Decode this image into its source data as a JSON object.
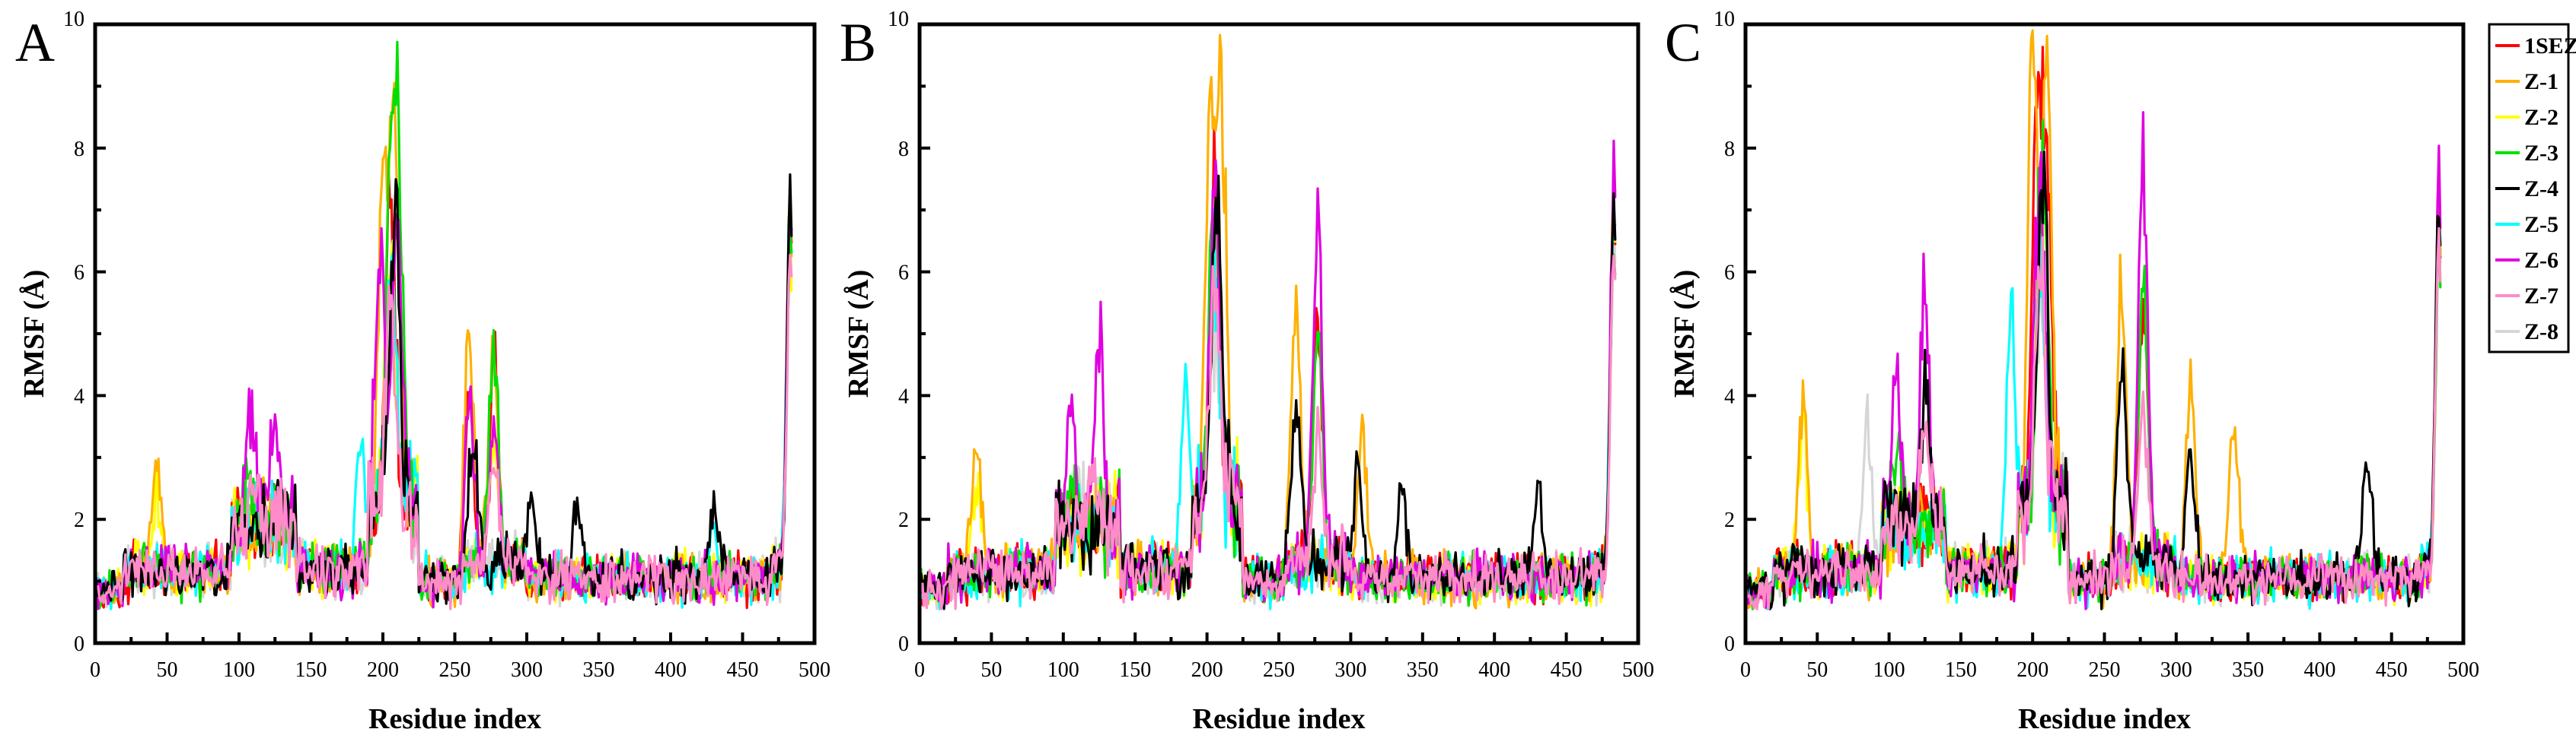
{
  "chart_data": [
    {
      "type": "line",
      "panel_label": "A",
      "xlabel": "Residue index",
      "ylabel": "RMSF (Å)",
      "xlim": [
        0,
        500
      ],
      "ylim": [
        0,
        10
      ],
      "xticks": [
        0,
        50,
        100,
        150,
        200,
        250,
        300,
        350,
        400,
        450,
        500
      ],
      "yticks": [
        0,
        2,
        4,
        6,
        8,
        10
      ],
      "x_max_residue": 484,
      "peaks": {
        "1SEZ": [
          [
            205,
            6.9
          ],
          [
            260,
            4.2
          ],
          [
            277,
            5.0
          ],
          [
            483,
            7.6
          ]
        ],
        "Z-1": [
          [
            43,
            3.1
          ],
          [
            200,
            7.6
          ],
          [
            208,
            8.7
          ],
          [
            260,
            5.4
          ],
          [
            277,
            5.1
          ],
          [
            483,
            7.5
          ]
        ],
        "Z-2": [
          [
            43,
            2.4
          ],
          [
            205,
            6.0
          ],
          [
            277,
            3.4
          ],
          [
            483,
            7.2
          ]
        ],
        "Z-3": [
          [
            105,
            2.8
          ],
          [
            205,
            7.0
          ],
          [
            211,
            7.7
          ],
          [
            277,
            5.0
          ],
          [
            483,
            7.0
          ]
        ],
        "Z-4": [
          [
            130,
            2.7
          ],
          [
            208,
            6.9
          ],
          [
            263,
            3.4
          ],
          [
            303,
            2.6
          ],
          [
            335,
            2.3
          ],
          [
            430,
            2.4
          ],
          [
            483,
            7.6
          ]
        ],
        "Z-5": [
          [
            185,
            3.4
          ],
          [
            205,
            5.8
          ],
          [
            430,
            2.0
          ],
          [
            483,
            7.7
          ]
        ],
        "Z-6": [
          [
            108,
            3.9
          ],
          [
            125,
            3.9
          ],
          [
            198,
            6.6
          ],
          [
            210,
            6.8
          ],
          [
            260,
            4.1
          ],
          [
            277,
            3.6
          ],
          [
            483,
            7.6
          ]
        ],
        "Z-7": [
          [
            110,
            2.6
          ],
          [
            205,
            5.0
          ],
          [
            277,
            3.0
          ],
          [
            483,
            6.8
          ]
        ],
        "Z-8": [
          [
            110,
            2.3
          ],
          [
            205,
            4.6
          ],
          [
            483,
            6.7
          ]
        ]
      }
    },
    {
      "type": "line",
      "panel_label": "B",
      "xlabel": "Residue index",
      "ylabel": "RMSF (Å)",
      "xlim": [
        0,
        500
      ],
      "ylim": [
        0,
        10
      ],
      "xticks": [
        0,
        50,
        100,
        150,
        200,
        250,
        300,
        350,
        400,
        450,
        500
      ],
      "yticks": [
        0,
        2,
        4,
        6,
        8,
        10
      ],
      "x_max_residue": 484,
      "peaks": {
        "1SEZ": [
          [
            205,
            7.3
          ],
          [
            277,
            5.4
          ],
          [
            483,
            7.6
          ]
        ],
        "Z-1": [
          [
            40,
            3.4
          ],
          [
            202,
            8.4
          ],
          [
            210,
            8.9
          ],
          [
            262,
            5.7
          ],
          [
            308,
            3.7
          ],
          [
            483,
            7.9
          ]
        ],
        "Z-2": [
          [
            40,
            2.6
          ],
          [
            205,
            6.0
          ],
          [
            483,
            7.4
          ]
        ],
        "Z-3": [
          [
            107,
            2.8
          ],
          [
            205,
            7.2
          ],
          [
            277,
            5.2
          ],
          [
            483,
            7.0
          ]
        ],
        "Z-4": [
          [
            207,
            7.0
          ],
          [
            262,
            4.3
          ],
          [
            305,
            2.8
          ],
          [
            335,
            2.6
          ],
          [
            430,
            2.6
          ],
          [
            483,
            7.7
          ]
        ],
        "Z-5": [
          [
            185,
            4.5
          ],
          [
            205,
            6.0
          ],
          [
            483,
            7.6
          ]
        ],
        "Z-6": [
          [
            105,
            4.2
          ],
          [
            125,
            5.0
          ],
          [
            205,
            7.4
          ],
          [
            277,
            7.0
          ],
          [
            483,
            8.2
          ]
        ],
        "Z-7": [
          [
            120,
            3.0
          ],
          [
            205,
            5.5
          ],
          [
            277,
            3.5
          ],
          [
            483,
            7.0
          ]
        ],
        "Z-8": [
          [
            110,
            2.5
          ],
          [
            205,
            5.0
          ],
          [
            483,
            6.8
          ]
        ]
      }
    },
    {
      "type": "line",
      "panel_label": "C",
      "xlabel": "Residue index",
      "ylabel": "RMSF (Å)",
      "xlim": [
        0,
        500
      ],
      "ylim": [
        0,
        10
      ],
      "xticks": [
        0,
        50,
        100,
        150,
        200,
        250,
        300,
        350,
        400,
        450,
        500
      ],
      "yticks": [
        0,
        2,
        4,
        6,
        8,
        10
      ],
      "x_max_residue": 484,
      "peaks": {
        "1SEZ": [
          [
            203,
            8.2
          ],
          [
            210,
            7.5
          ],
          [
            277,
            5.8
          ],
          [
            483,
            7.8
          ]
        ],
        "Z-1": [
          [
            40,
            4.2
          ],
          [
            200,
            9.6
          ],
          [
            210,
            9.5
          ],
          [
            262,
            6.0
          ],
          [
            310,
            4.5
          ],
          [
            340,
            3.7
          ],
          [
            483,
            7.6
          ]
        ],
        "Z-2": [
          [
            40,
            3.6
          ],
          [
            205,
            6.8
          ],
          [
            483,
            7.4
          ]
        ],
        "Z-3": [
          [
            105,
            3.3
          ],
          [
            207,
            8.0
          ],
          [
            277,
            6.2
          ],
          [
            483,
            7.0
          ]
        ],
        "Z-4": [
          [
            125,
            4.4
          ],
          [
            207,
            7.6
          ],
          [
            262,
            4.8
          ],
          [
            310,
            3.2
          ],
          [
            433,
            3.2
          ],
          [
            483,
            7.8
          ]
        ],
        "Z-5": [
          [
            185,
            5.6
          ],
          [
            205,
            6.3
          ],
          [
            483,
            7.4
          ]
        ],
        "Z-6": [
          [
            105,
            4.5
          ],
          [
            125,
            5.9
          ],
          [
            205,
            7.6
          ],
          [
            277,
            8.4
          ],
          [
            483,
            8.3
          ]
        ],
        "Z-7": [
          [
            125,
            3.5
          ],
          [
            205,
            6.2
          ],
          [
            277,
            4.0
          ],
          [
            483,
            7.2
          ]
        ],
        "Z-8": [
          [
            85,
            3.7
          ],
          [
            205,
            5.5
          ],
          [
            483,
            6.9
          ]
        ]
      }
    }
  ],
  "legend": {
    "placement": "right",
    "entries": [
      {
        "name": "1SEZ",
        "color": "#ff0000"
      },
      {
        "name": "Z-1",
        "color": "#ffb000"
      },
      {
        "name": "Z-2",
        "color": "#ffff00"
      },
      {
        "name": "Z-3",
        "color": "#00e000"
      },
      {
        "name": "Z-4",
        "color": "#000000"
      },
      {
        "name": "Z-5",
        "color": "#00ffff"
      },
      {
        "name": "Z-6",
        "color": "#e000e0"
      },
      {
        "name": "Z-7",
        "color": "#ff8cc8"
      },
      {
        "name": "Z-8",
        "color": "#d6d6d6"
      }
    ]
  }
}
